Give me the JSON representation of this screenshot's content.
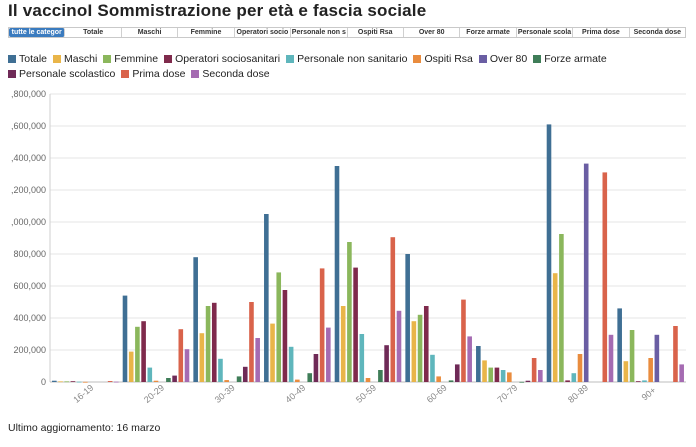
{
  "title": "Il vaccinoI Sommistrazione per età e fascia sociale",
  "tabs": [
    "tutte le categor",
    "Totale",
    "Maschi",
    "Femmine",
    "Operatori socio",
    "Personale non s",
    "Ospiti Rsa",
    "Over 80",
    "Forze armate",
    "Personale scola",
    "Prima dose",
    "Seconda dose"
  ],
  "active_tab": 0,
  "footer": "Ultimo aggiornamento: 16 marzo",
  "chart_data": {
    "type": "bar",
    "categories": [
      "16-19",
      "20-29",
      "30-39",
      "40-49",
      "50-59",
      "60-69",
      "70-79",
      "80-89",
      "90+"
    ],
    "y_tick_labels": [
      ",800,000",
      ",600,000",
      ",400,000",
      ",200,000",
      ",000,000",
      "800,000",
      "600,000",
      "400,000",
      "200,000",
      "0"
    ],
    "ylim": [
      0,
      1800000
    ],
    "grid": true,
    "legend_position": "top",
    "series": [
      {
        "name": "Totale",
        "color": "#3f6f94",
        "values": [
          8000,
          540000,
          780000,
          1050000,
          1350000,
          800000,
          225000,
          1610000,
          460000
        ]
      },
      {
        "name": "Maschi",
        "color": "#e9b549",
        "values": [
          4000,
          190000,
          305000,
          365000,
          475000,
          380000,
          135000,
          680000,
          130000
        ]
      },
      {
        "name": "Femmine",
        "color": "#8bb75c",
        "values": [
          4000,
          345000,
          475000,
          685000,
          875000,
          420000,
          90000,
          925000,
          325000
        ]
      },
      {
        "name": "Operatori sociosanitari",
        "color": "#7f2a4c",
        "values": [
          5000,
          380000,
          495000,
          575000,
          715000,
          475000,
          90000,
          10000,
          5000
        ]
      },
      {
        "name": "Personale non sanitario",
        "color": "#5fb6bc",
        "values": [
          2000,
          90000,
          145000,
          220000,
          300000,
          170000,
          75000,
          55000,
          10000
        ]
      },
      {
        "name": "Ospiti Rsa",
        "color": "#e98c3e",
        "values": [
          1000,
          8000,
          12000,
          15000,
          25000,
          35000,
          60000,
          175000,
          150000
        ]
      },
      {
        "name": "Over 80",
        "color": "#6a5ea3",
        "values": [
          0,
          0,
          0,
          0,
          0,
          0,
          0,
          1365000,
          295000
        ]
      },
      {
        "name": "Forze armate",
        "color": "#3f7d58",
        "values": [
          0,
          25000,
          35000,
          55000,
          75000,
          10000,
          1000,
          0,
          0
        ]
      },
      {
        "name": "Personale scolastico",
        "color": "#6f2a57",
        "values": [
          0,
          40000,
          95000,
          175000,
          230000,
          110000,
          8000,
          0,
          0
        ]
      },
      {
        "name": "Prima dose",
        "color": "#d9634b",
        "values": [
          6000,
          330000,
          500000,
          710000,
          905000,
          515000,
          150000,
          1310000,
          350000
        ]
      },
      {
        "name": "Seconda dose",
        "color": "#a56bb2",
        "values": [
          2000,
          205000,
          275000,
          340000,
          445000,
          285000,
          75000,
          295000,
          110000
        ]
      }
    ]
  }
}
